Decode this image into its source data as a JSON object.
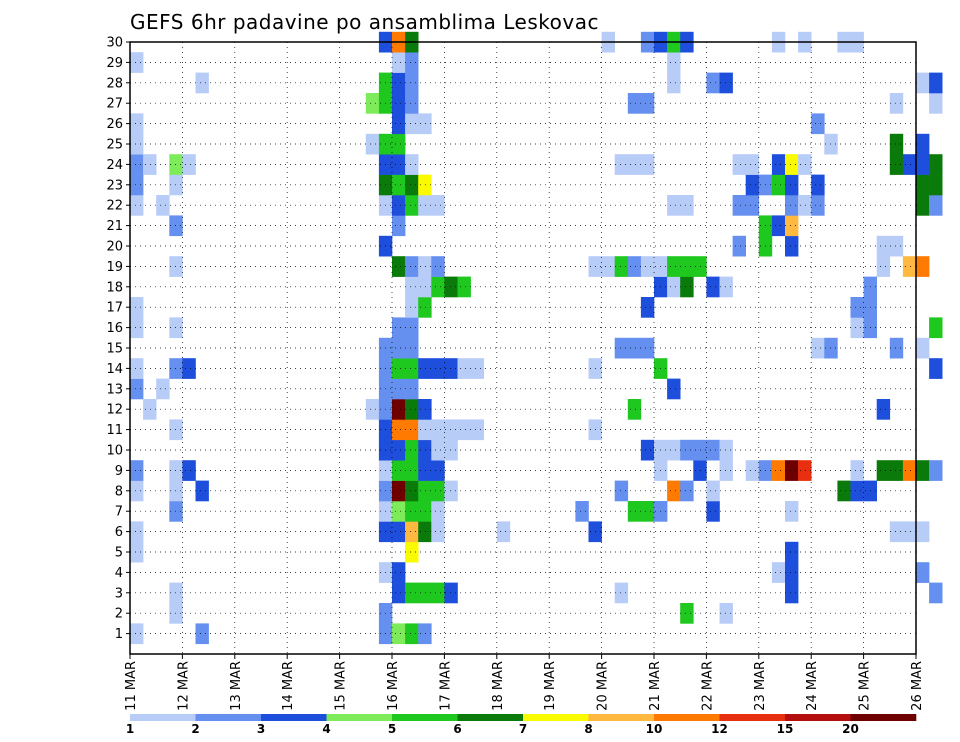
{
  "chart_data": {
    "type": "heatmap",
    "title": "GEFS 6hr padavine po ansamblima Leskovac",
    "xlabel": "",
    "ylabel": "",
    "x_ticks": [
      "11 MAR",
      "12 MAR",
      "13 MAR",
      "14 MAR",
      "15 MAR",
      "16 MAR",
      "17 MAR",
      "18 MAR",
      "19 MAR",
      "20 MAR",
      "21 MAR",
      "22 MAR",
      "23 MAR",
      "24 MAR",
      "25 MAR",
      "26 MAR"
    ],
    "x_range_days": [
      11,
      26
    ],
    "time_step_hours": 6,
    "y_ticks": [
      1,
      2,
      3,
      4,
      5,
      6,
      7,
      8,
      9,
      10,
      11,
      12,
      13,
      14,
      15,
      16,
      17,
      18,
      19,
      20,
      21,
      22,
      23,
      24,
      25,
      26,
      27,
      28,
      29,
      30
    ],
    "y_range": [
      0,
      30
    ],
    "grid": "dotted",
    "colorbar": {
      "placement": "bottom",
      "tick_labels": [
        "1",
        "2",
        "3",
        "4",
        "5",
        "6",
        "7",
        "8",
        "10",
        "12",
        "15",
        "20"
      ],
      "colors": [
        "#b8ccf8",
        "#6690f0",
        "#1e4edc",
        "#7eec5a",
        "#1ec81e",
        "#0a7a0a",
        "#fafa00",
        "#ffb840",
        "#ff7a00",
        "#e83010",
        "#b40e0e",
        "#6e0000"
      ]
    },
    "cells_format": "[step_index, member, color_index] — step 0 = 11 MAR 00z, 4 steps per day",
    "cells": [
      [
        0,
        1,
        0
      ],
      [
        0,
        5,
        0
      ],
      [
        0,
        6,
        0
      ],
      [
        0,
        8,
        0
      ],
      [
        0,
        9,
        1
      ],
      [
        0,
        13,
        1
      ],
      [
        0,
        14,
        0
      ],
      [
        0,
        16,
        0
      ],
      [
        0,
        17,
        0
      ],
      [
        0,
        22,
        0
      ],
      [
        0,
        23,
        1
      ],
      [
        0,
        24,
        1
      ],
      [
        0,
        25,
        0
      ],
      [
        0,
        26,
        0
      ],
      [
        0,
        29,
        0
      ],
      [
        1,
        12,
        0
      ],
      [
        1,
        24,
        0
      ],
      [
        2,
        13,
        0
      ],
      [
        2,
        22,
        0
      ],
      [
        3,
        2,
        0
      ],
      [
        3,
        3,
        0
      ],
      [
        3,
        7,
        1
      ],
      [
        3,
        8,
        0
      ],
      [
        3,
        9,
        0
      ],
      [
        3,
        11,
        0
      ],
      [
        3,
        14,
        1
      ],
      [
        3,
        16,
        0
      ],
      [
        3,
        19,
        0
      ],
      [
        3,
        21,
        1
      ],
      [
        3,
        23,
        0
      ],
      [
        3,
        24,
        3
      ],
      [
        4,
        9,
        2
      ],
      [
        4,
        14,
        2
      ],
      [
        4,
        24,
        0
      ],
      [
        5,
        1,
        1
      ],
      [
        5,
        8,
        2
      ],
      [
        5,
        28,
        0
      ],
      [
        18,
        12,
        0
      ],
      [
        18,
        25,
        0
      ],
      [
        18,
        27,
        3
      ],
      [
        19,
        1,
        1
      ],
      [
        19,
        2,
        1
      ],
      [
        19,
        4,
        0
      ],
      [
        19,
        6,
        2
      ],
      [
        19,
        7,
        0
      ],
      [
        19,
        8,
        1
      ],
      [
        19,
        9,
        0
      ],
      [
        19,
        10,
        2
      ],
      [
        19,
        11,
        2
      ],
      [
        19,
        12,
        1
      ],
      [
        19,
        13,
        1
      ],
      [
        19,
        14,
        1
      ],
      [
        19,
        15,
        1
      ],
      [
        19,
        20,
        2
      ],
      [
        19,
        22,
        0
      ],
      [
        19,
        23,
        5
      ],
      [
        19,
        24,
        2
      ],
      [
        19,
        25,
        4
      ],
      [
        19,
        27,
        4
      ],
      [
        19,
        28,
        4
      ],
      [
        19,
        30,
        2
      ],
      [
        20,
        1,
        3
      ],
      [
        20,
        3,
        2
      ],
      [
        20,
        4,
        2
      ],
      [
        20,
        6,
        2
      ],
      [
        20,
        7,
        3
      ],
      [
        20,
        8,
        11
      ],
      [
        20,
        9,
        4
      ],
      [
        20,
        10,
        2
      ],
      [
        20,
        11,
        8
      ],
      [
        20,
        12,
        11
      ],
      [
        20,
        13,
        1
      ],
      [
        20,
        14,
        4
      ],
      [
        20,
        15,
        1
      ],
      [
        20,
        16,
        1
      ],
      [
        20,
        19,
        5
      ],
      [
        20,
        21,
        1
      ],
      [
        20,
        22,
        2
      ],
      [
        20,
        23,
        4
      ],
      [
        20,
        24,
        2
      ],
      [
        20,
        25,
        4
      ],
      [
        20,
        26,
        2
      ],
      [
        20,
        27,
        2
      ],
      [
        20,
        28,
        2
      ],
      [
        20,
        29,
        0
      ],
      [
        20,
        30,
        8
      ],
      [
        21,
        1,
        4
      ],
      [
        21,
        3,
        4
      ],
      [
        21,
        5,
        6
      ],
      [
        21,
        6,
        7
      ],
      [
        21,
        7,
        4
      ],
      [
        21,
        8,
        5
      ],
      [
        21,
        9,
        4
      ],
      [
        21,
        10,
        4
      ],
      [
        21,
        11,
        8
      ],
      [
        21,
        12,
        5
      ],
      [
        21,
        13,
        1
      ],
      [
        21,
        14,
        4
      ],
      [
        21,
        15,
        1
      ],
      [
        21,
        16,
        1
      ],
      [
        21,
        17,
        0
      ],
      [
        21,
        18,
        0
      ],
      [
        21,
        19,
        1
      ],
      [
        21,
        22,
        4
      ],
      [
        21,
        23,
        5
      ],
      [
        21,
        24,
        0
      ],
      [
        21,
        26,
        0
      ],
      [
        21,
        27,
        1
      ],
      [
        21,
        28,
        1
      ],
      [
        21,
        29,
        1
      ],
      [
        21,
        30,
        5
      ],
      [
        22,
        1,
        1
      ],
      [
        22,
        3,
        4
      ],
      [
        22,
        6,
        5
      ],
      [
        22,
        7,
        4
      ],
      [
        22,
        8,
        4
      ],
      [
        22,
        9,
        2
      ],
      [
        22,
        10,
        2
      ],
      [
        22,
        11,
        0
      ],
      [
        22,
        12,
        2
      ],
      [
        22,
        14,
        2
      ],
      [
        22,
        17,
        4
      ],
      [
        22,
        18,
        0
      ],
      [
        22,
        19,
        0
      ],
      [
        22,
        22,
        0
      ],
      [
        22,
        23,
        6
      ],
      [
        22,
        26,
        0
      ],
      [
        23,
        3,
        4
      ],
      [
        23,
        6,
        0
      ],
      [
        23,
        7,
        0
      ],
      [
        23,
        8,
        4
      ],
      [
        23,
        9,
        2
      ],
      [
        23,
        10,
        0
      ],
      [
        23,
        11,
        0
      ],
      [
        23,
        14,
        2
      ],
      [
        23,
        18,
        4
      ],
      [
        23,
        19,
        1
      ],
      [
        23,
        22,
        0
      ],
      [
        24,
        3,
        2
      ],
      [
        24,
        8,
        0
      ],
      [
        24,
        10,
        0
      ],
      [
        24,
        11,
        0
      ],
      [
        24,
        14,
        2
      ],
      [
        24,
        18,
        5
      ],
      [
        25,
        11,
        0
      ],
      [
        25,
        14,
        0
      ],
      [
        25,
        18,
        4
      ],
      [
        26,
        11,
        0
      ],
      [
        26,
        14,
        0
      ],
      [
        28,
        6,
        0
      ],
      [
        34,
        7,
        1
      ],
      [
        35,
        6,
        2
      ],
      [
        35,
        11,
        0
      ],
      [
        35,
        14,
        0
      ],
      [
        35,
        19,
        0
      ],
      [
        36,
        19,
        0
      ],
      [
        36,
        30,
        0
      ],
      [
        37,
        3,
        0
      ],
      [
        37,
        8,
        1
      ],
      [
        37,
        15,
        1
      ],
      [
        37,
        19,
        4
      ],
      [
        37,
        24,
        0
      ],
      [
        38,
        7,
        4
      ],
      [
        38,
        12,
        4
      ],
      [
        38,
        15,
        1
      ],
      [
        38,
        19,
        1
      ],
      [
        38,
        24,
        0
      ],
      [
        38,
        27,
        1
      ],
      [
        39,
        7,
        4
      ],
      [
        39,
        10,
        2
      ],
      [
        39,
        15,
        1
      ],
      [
        39,
        17,
        2
      ],
      [
        39,
        19,
        0
      ],
      [
        39,
        24,
        0
      ],
      [
        39,
        27,
        1
      ],
      [
        39,
        30,
        1
      ],
      [
        40,
        7,
        1
      ],
      [
        40,
        9,
        0
      ],
      [
        40,
        10,
        0
      ],
      [
        40,
        14,
        4
      ],
      [
        40,
        18,
        2
      ],
      [
        40,
        19,
        0
      ],
      [
        40,
        30,
        2
      ],
      [
        41,
        8,
        8
      ],
      [
        41,
        10,
        0
      ],
      [
        41,
        13,
        2
      ],
      [
        41,
        18,
        0
      ],
      [
        41,
        19,
        4
      ],
      [
        41,
        22,
        0
      ],
      [
        41,
        28,
        0
      ],
      [
        41,
        29,
        0
      ],
      [
        41,
        30,
        4
      ],
      [
        42,
        2,
        4
      ],
      [
        42,
        8,
        1
      ],
      [
        42,
        10,
        1
      ],
      [
        42,
        18,
        5
      ],
      [
        42,
        19,
        4
      ],
      [
        42,
        22,
        0
      ],
      [
        42,
        30,
        2
      ],
      [
        43,
        9,
        2
      ],
      [
        43,
        10,
        1
      ],
      [
        43,
        19,
        4
      ],
      [
        44,
        7,
        2
      ],
      [
        44,
        8,
        0
      ],
      [
        44,
        10,
        1
      ],
      [
        44,
        18,
        2
      ],
      [
        44,
        28,
        1
      ],
      [
        45,
        2,
        0
      ],
      [
        45,
        9,
        0
      ],
      [
        45,
        10,
        0
      ],
      [
        45,
        18,
        0
      ],
      [
        45,
        28,
        2
      ],
      [
        46,
        20,
        1
      ],
      [
        46,
        22,
        1
      ],
      [
        46,
        24,
        0
      ],
      [
        47,
        9,
        0
      ],
      [
        47,
        22,
        1
      ],
      [
        47,
        23,
        2
      ],
      [
        47,
        24,
        0
      ],
      [
        48,
        9,
        1
      ],
      [
        48,
        20,
        4
      ],
      [
        48,
        21,
        4
      ],
      [
        48,
        23,
        1
      ],
      [
        49,
        4,
        0
      ],
      [
        49,
        9,
        8
      ],
      [
        49,
        21,
        2
      ],
      [
        49,
        23,
        4
      ],
      [
        49,
        24,
        2
      ],
      [
        49,
        30,
        0
      ],
      [
        50,
        3,
        2
      ],
      [
        50,
        4,
        2
      ],
      [
        50,
        5,
        2
      ],
      [
        50,
        7,
        0
      ],
      [
        50,
        9,
        11
      ],
      [
        50,
        20,
        2
      ],
      [
        50,
        21,
        7
      ],
      [
        50,
        22,
        1
      ],
      [
        50,
        23,
        2
      ],
      [
        50,
        24,
        6
      ],
      [
        51,
        9,
        9
      ],
      [
        51,
        22,
        0
      ],
      [
        51,
        24,
        0
      ],
      [
        51,
        30,
        0
      ],
      [
        52,
        15,
        0
      ],
      [
        52,
        22,
        1
      ],
      [
        52,
        23,
        2
      ],
      [
        52,
        26,
        1
      ],
      [
        53,
        15,
        1
      ],
      [
        53,
        25,
        0
      ],
      [
        54,
        8,
        5
      ],
      [
        54,
        30,
        0
      ],
      [
        55,
        8,
        2
      ],
      [
        55,
        9,
        0
      ],
      [
        55,
        16,
        0
      ],
      [
        55,
        17,
        1
      ],
      [
        55,
        30,
        0
      ],
      [
        56,
        8,
        2
      ],
      [
        56,
        16,
        1
      ],
      [
        56,
        17,
        1
      ],
      [
        56,
        18,
        1
      ],
      [
        57,
        9,
        5
      ],
      [
        57,
        12,
        2
      ],
      [
        57,
        19,
        0
      ],
      [
        57,
        20,
        0
      ],
      [
        58,
        6,
        0
      ],
      [
        58,
        9,
        5
      ],
      [
        58,
        15,
        1
      ],
      [
        58,
        20,
        0
      ],
      [
        58,
        24,
        5
      ],
      [
        58,
        25,
        5
      ],
      [
        58,
        27,
        0
      ],
      [
        59,
        6,
        0
      ],
      [
        59,
        9,
        8
      ],
      [
        59,
        19,
        7
      ],
      [
        59,
        24,
        2
      ],
      [
        60,
        4,
        1
      ],
      [
        60,
        6,
        0
      ],
      [
        60,
        9,
        5
      ],
      [
        60,
        15,
        0
      ],
      [
        60,
        19,
        8
      ],
      [
        60,
        22,
        5
      ],
      [
        60,
        23,
        5
      ],
      [
        60,
        24,
        2
      ],
      [
        60,
        25,
        2
      ],
      [
        60,
        28,
        0
      ],
      [
        61,
        3,
        1
      ],
      [
        61,
        9,
        1
      ],
      [
        61,
        14,
        2
      ],
      [
        61,
        16,
        4
      ],
      [
        61,
        22,
        1
      ],
      [
        61,
        23,
        5
      ],
      [
        61,
        24,
        5
      ],
      [
        61,
        27,
        0
      ],
      [
        61,
        28,
        2
      ]
    ]
  }
}
